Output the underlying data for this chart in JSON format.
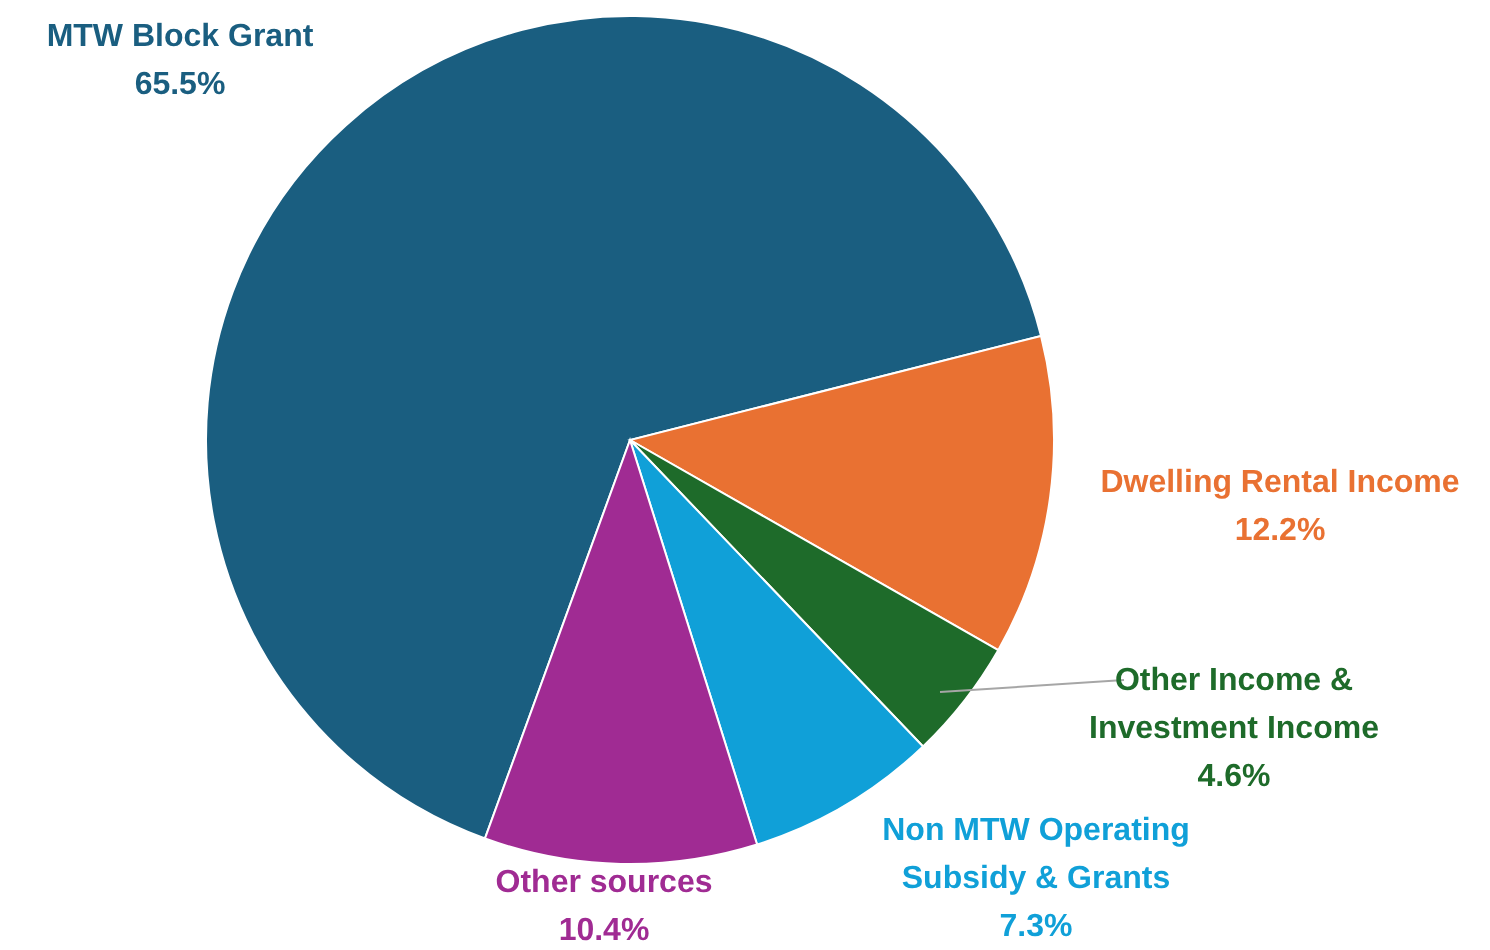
{
  "chart_data": {
    "type": "pie",
    "categories": [
      "MTW Block Grant",
      "Dwelling Rental Income",
      "Other Income & Investment Income",
      "Non MTW Operating Subsidy & Grants",
      "Other sources"
    ],
    "values": [
      65.5,
      12.2,
      4.6,
      7.3,
      10.4
    ],
    "value_labels": [
      "65.5%",
      "12.2%",
      "4.6%",
      "7.3%",
      "10.4%"
    ],
    "colors": [
      "#1a5e80",
      "#e97132",
      "#1e6b2a",
      "#10a0d8",
      "#a02b93"
    ]
  }
}
